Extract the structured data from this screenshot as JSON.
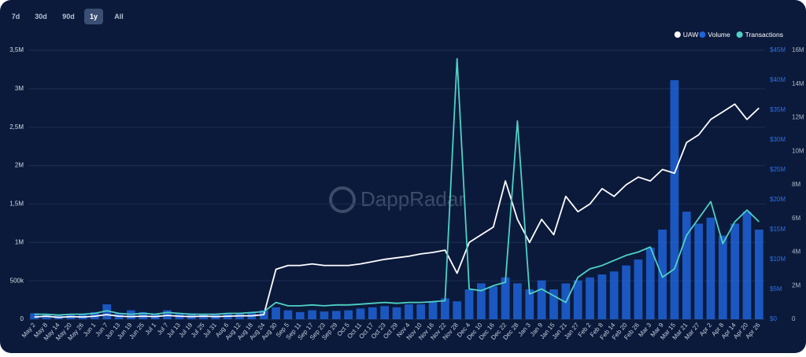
{
  "range_buttons": [
    "7d",
    "30d",
    "90d",
    "1y",
    "All"
  ],
  "active_range": 3,
  "watermark": "DappRadar",
  "chart_data": {
    "type": "bar-line",
    "categories": [
      "May 2",
      "May 8",
      "May 14",
      "May 20",
      "May 26",
      "Jun 1",
      "Jun 7",
      "Jun 13",
      "Jun 19",
      "Jun 25",
      "Jul 1",
      "Jul 7",
      "Jul 13",
      "Jul 19",
      "Jul 25",
      "Jul 31",
      "Aug 6",
      "Aug 12",
      "Aug 18",
      "Aug 24",
      "Aug 30",
      "Sep 5",
      "Sep 11",
      "Sep 17",
      "Sep 23",
      "Sep 29",
      "Oct 5",
      "Oct 11",
      "Oct 17",
      "Oct 23",
      "Oct 29",
      "Nov 4",
      "Nov 10",
      "Nov 16",
      "Nov 22",
      "Nov 28",
      "Dec 4",
      "Dec 10",
      "Dec 16",
      "Dec 22",
      "Dec 28",
      "Jan 3",
      "Jan 9",
      "Jan 15",
      "Jan 21",
      "Jan 27",
      "Feb 2",
      "Feb 8",
      "Feb 14",
      "Feb 20",
      "Feb 26",
      "Mar 3",
      "Mar 9",
      "Mar 15",
      "Mar 21",
      "Mar 27",
      "Apr 2",
      "Apr 8",
      "Apr 14",
      "Apr 20",
      "Apr 26"
    ],
    "series": [
      {
        "name": "UAW",
        "color": "#ffffff",
        "kind": "line",
        "axis": "y",
        "values": [
          30000,
          40000,
          25000,
          35000,
          30000,
          40000,
          60000,
          40000,
          35000,
          40000,
          35000,
          50000,
          40000,
          35000,
          40000,
          35000,
          40000,
          45000,
          45000,
          60000,
          650000,
          700000,
          700000,
          720000,
          700000,
          700000,
          700000,
          720000,
          750000,
          780000,
          800000,
          820000,
          850000,
          870000,
          900000,
          600000,
          1000000,
          1100000,
          1200000,
          1800000,
          1300000,
          1000000,
          1300000,
          1100000,
          1600000,
          1400000,
          1500000,
          1700000,
          1600000,
          1750000,
          1850000,
          1800000,
          1950000,
          1900000,
          2300000,
          2400000,
          2600000,
          2700000,
          2800000,
          2600000,
          2750000
        ]
      },
      {
        "name": "Volume",
        "color": "#1f63d8",
        "kind": "bar",
        "axis": "y2",
        "values": [
          1000000,
          800000,
          600000,
          700000,
          900000,
          1200000,
          2500000,
          1000000,
          1500000,
          1200000,
          800000,
          1500000,
          900000,
          1000000,
          800000,
          900000,
          1000000,
          1100000,
          1200000,
          1500000,
          2000000,
          1500000,
          1200000,
          1500000,
          1300000,
          1400000,
          1500000,
          1800000,
          2000000,
          2200000,
          2000000,
          2500000,
          2500000,
          3000000,
          3500000,
          3000000,
          5000000,
          6000000,
          5500000,
          7000000,
          6000000,
          5000000,
          6500000,
          5000000,
          6000000,
          6500000,
          7000000,
          7500000,
          8000000,
          9000000,
          10000000,
          12000000,
          15000000,
          40000000,
          18000000,
          16000000,
          17000000,
          14000000,
          16000000,
          18000000,
          15000000
        ]
      },
      {
        "name": "Transactions",
        "color": "#4fd1c5",
        "kind": "line",
        "axis": "y3",
        "values": [
          300000,
          300000,
          250000,
          300000,
          300000,
          350000,
          500000,
          350000,
          300000,
          350000,
          300000,
          400000,
          350000,
          300000,
          300000,
          300000,
          350000,
          350000,
          400000,
          450000,
          1000000,
          800000,
          800000,
          850000,
          800000,
          850000,
          850000,
          900000,
          950000,
          1000000,
          950000,
          1000000,
          1000000,
          1050000,
          1100000,
          15500000,
          1800000,
          1700000,
          2000000,
          2200000,
          11800000,
          1500000,
          1800000,
          1400000,
          1000000,
          2500000,
          3000000,
          3200000,
          3500000,
          3800000,
          4000000,
          4300000,
          2500000,
          3000000,
          5000000,
          6000000,
          7000000,
          4500000,
          5800000,
          6500000,
          5800000
        ]
      }
    ],
    "ylim": [
      0,
      3500000
    ],
    "yticks": [
      0,
      {
        "value": 500000,
        "label": "500k"
      },
      {
        "value": 1000000,
        "label": "1M"
      },
      {
        "value": 1500000,
        "label": "1,5M"
      },
      {
        "value": 2000000,
        "label": "2M"
      },
      {
        "value": 2500000,
        "label": "2,5M"
      },
      {
        "value": 3000000,
        "label": "3M"
      },
      {
        "value": 3500000,
        "label": "3,5M"
      }
    ],
    "y2lim": [
      0,
      45000000
    ],
    "y2ticks": [
      {
        "value": 0,
        "label": "$0"
      },
      {
        "value": 5000000,
        "label": "$5M"
      },
      {
        "value": 10000000,
        "label": "$10M"
      },
      {
        "value": 15000000,
        "label": "$15M"
      },
      {
        "value": 20000000,
        "label": "$20M"
      },
      {
        "value": 25000000,
        "label": "$25M"
      },
      {
        "value": 30000000,
        "label": "$30M"
      },
      {
        "value": 35000000,
        "label": "$35M"
      },
      {
        "value": 40000000,
        "label": "$40M"
      },
      {
        "value": 45000000,
        "label": "$45M"
      }
    ],
    "y3lim": [
      0,
      16000000
    ],
    "y3ticks": [
      0,
      {
        "value": 2000000,
        "label": "2M"
      },
      {
        "value": 4000000,
        "label": "4M"
      },
      {
        "value": 6000000,
        "label": "6M"
      },
      {
        "value": 8000000,
        "label": "8M"
      },
      {
        "value": 10000000,
        "label": "10M"
      },
      {
        "value": 12000000,
        "label": "12M"
      },
      {
        "value": 14000000,
        "label": "14M"
      },
      {
        "value": 16000000,
        "label": "16M"
      }
    ],
    "grid": true,
    "legend": "top-right"
  }
}
